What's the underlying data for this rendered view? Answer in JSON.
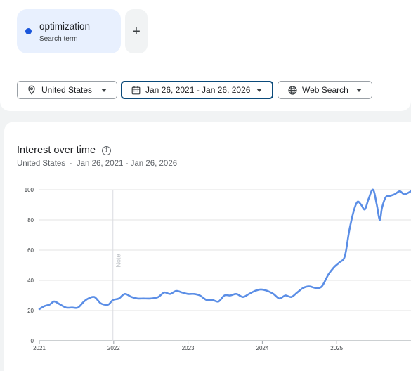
{
  "search_term": {
    "name": "optimization",
    "type": "Search term",
    "color": "#1a56db"
  },
  "add_term": {
    "label": "+"
  },
  "filters": {
    "country": "United States",
    "date_range": "Jan 26, 2021 - Jan 26, 2026",
    "property": "Web Search"
  },
  "icons": {
    "country": "location-pin-icon",
    "date": "calendar-icon",
    "property": "globe-icon",
    "info": "info-icon"
  },
  "chart_section": {
    "title": "Interest over time",
    "subtitle_location": "United States",
    "subtitle_separator": "·",
    "subtitle_range": "Jan 26, 2021 - Jan 26, 2026"
  },
  "chart_data": {
    "type": "line",
    "xlabel": "",
    "ylabel": "",
    "ylim": [
      0,
      100
    ],
    "yticks": [
      0,
      20,
      40,
      60,
      80,
      100
    ],
    "xticks": [
      "2021",
      "2022",
      "2023",
      "2024",
      "2025"
    ],
    "xlim": [
      2021.0,
      2026.0
    ],
    "grid": "horizontal",
    "line_color": "#5b8ee6",
    "annotation": {
      "x": 2021.99,
      "label": "Note"
    },
    "series": [
      {
        "name": "",
        "x": [
          2021.0,
          2021.07,
          2021.14,
          2021.2,
          2021.28,
          2021.36,
          2021.44,
          2021.52,
          2021.6,
          2021.66,
          2021.74,
          2021.82,
          2021.87,
          2021.93,
          2021.99,
          2022.07,
          2022.15,
          2022.24,
          2022.32,
          2022.4,
          2022.5,
          2022.6,
          2022.68,
          2022.76,
          2022.84,
          2022.92,
          2023.0,
          2023.08,
          2023.16,
          2023.25,
          2023.33,
          2023.41,
          2023.49,
          2023.57,
          2023.65,
          2023.74,
          2023.82,
          2023.9,
          2023.98,
          2024.07,
          2024.15,
          2024.23,
          2024.31,
          2024.39,
          2024.47,
          2024.55,
          2024.63,
          2024.72,
          2024.8,
          2024.89,
          2024.97,
          2025.04,
          2025.11,
          2025.17,
          2025.23,
          2025.28,
          2025.33,
          2025.38,
          2025.43,
          2025.49,
          2025.54,
          2025.58,
          2025.61,
          2025.66,
          2025.72,
          2025.78,
          2025.85,
          2025.91,
          2026.0
        ],
        "y": [
          21,
          23,
          24,
          26,
          24,
          22,
          22,
          22,
          26,
          28,
          29,
          25,
          24,
          24,
          27,
          28,
          31,
          29,
          28,
          28,
          28,
          29,
          32,
          31,
          33,
          32,
          31,
          31,
          30,
          27,
          27,
          26,
          30,
          30,
          31,
          29,
          31,
          33,
          34,
          33,
          31,
          28,
          30,
          29,
          32,
          35,
          36,
          35,
          36,
          44,
          49,
          52,
          56,
          73,
          86,
          92,
          90,
          87,
          94,
          100,
          90,
          80,
          88,
          95,
          96,
          97,
          99,
          97,
          99
        ]
      }
    ]
  }
}
